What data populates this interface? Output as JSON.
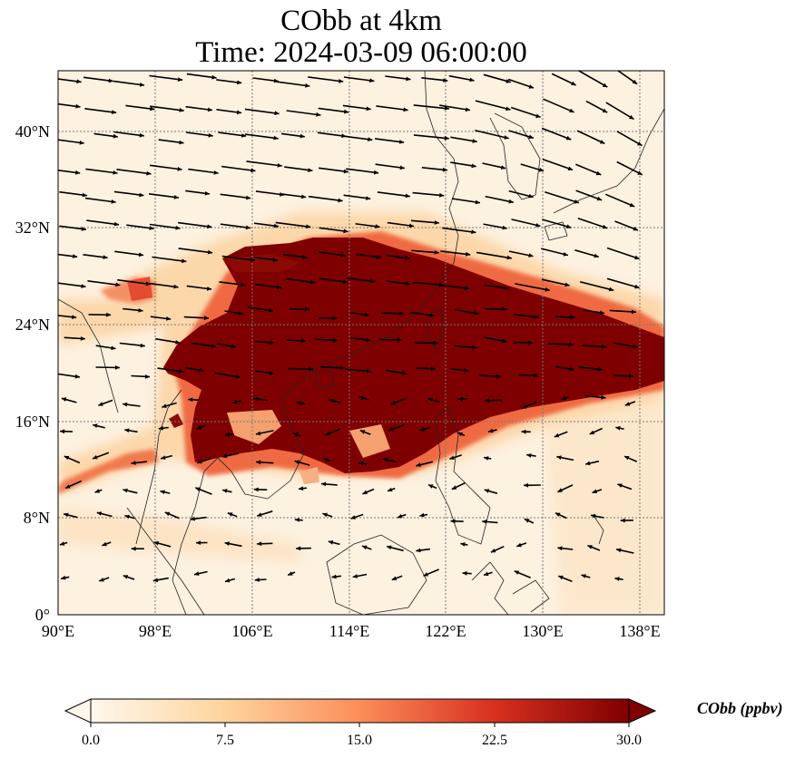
{
  "title": {
    "line1": "CObb at 4km",
    "line2": "Time: 2024-03-09 06:00:00"
  },
  "map": {
    "type": "filled contour map with wind vectors",
    "lon_range": [
      90,
      140
    ],
    "lat_range": [
      0,
      45
    ],
    "x_ticks": [
      {
        "value": 90,
        "label": "90°E"
      },
      {
        "value": 98,
        "label": "98°E"
      },
      {
        "value": 106,
        "label": "106°E"
      },
      {
        "value": 114,
        "label": "114°E"
      },
      {
        "value": 122,
        "label": "122°E"
      },
      {
        "value": 130,
        "label": "130°E"
      },
      {
        "value": 138,
        "label": "138°E"
      }
    ],
    "y_ticks": [
      {
        "value": 0,
        "label": "0°"
      },
      {
        "value": 8,
        "label": "8°N"
      },
      {
        "value": 16,
        "label": "16°N"
      },
      {
        "value": 24,
        "label": "24°N"
      },
      {
        "value": 32,
        "label": "32°N"
      },
      {
        "value": 40,
        "label": "40°N"
      }
    ],
    "grid": true,
    "colors": {
      "background": "#fdf1e0",
      "low": "#fdd9a8",
      "mid": "#f5905a",
      "high": "#c91d0e",
      "max": "#7f0000",
      "arrow": "#000000",
      "coast": "#222222",
      "grid": "#777777"
    }
  },
  "colorbar": {
    "ticks": [
      "0.0",
      "7.5",
      "15.0",
      "22.5",
      "30.0"
    ],
    "range": [
      0,
      30
    ],
    "label": "CObb (ppbv)",
    "extend": "both"
  }
}
